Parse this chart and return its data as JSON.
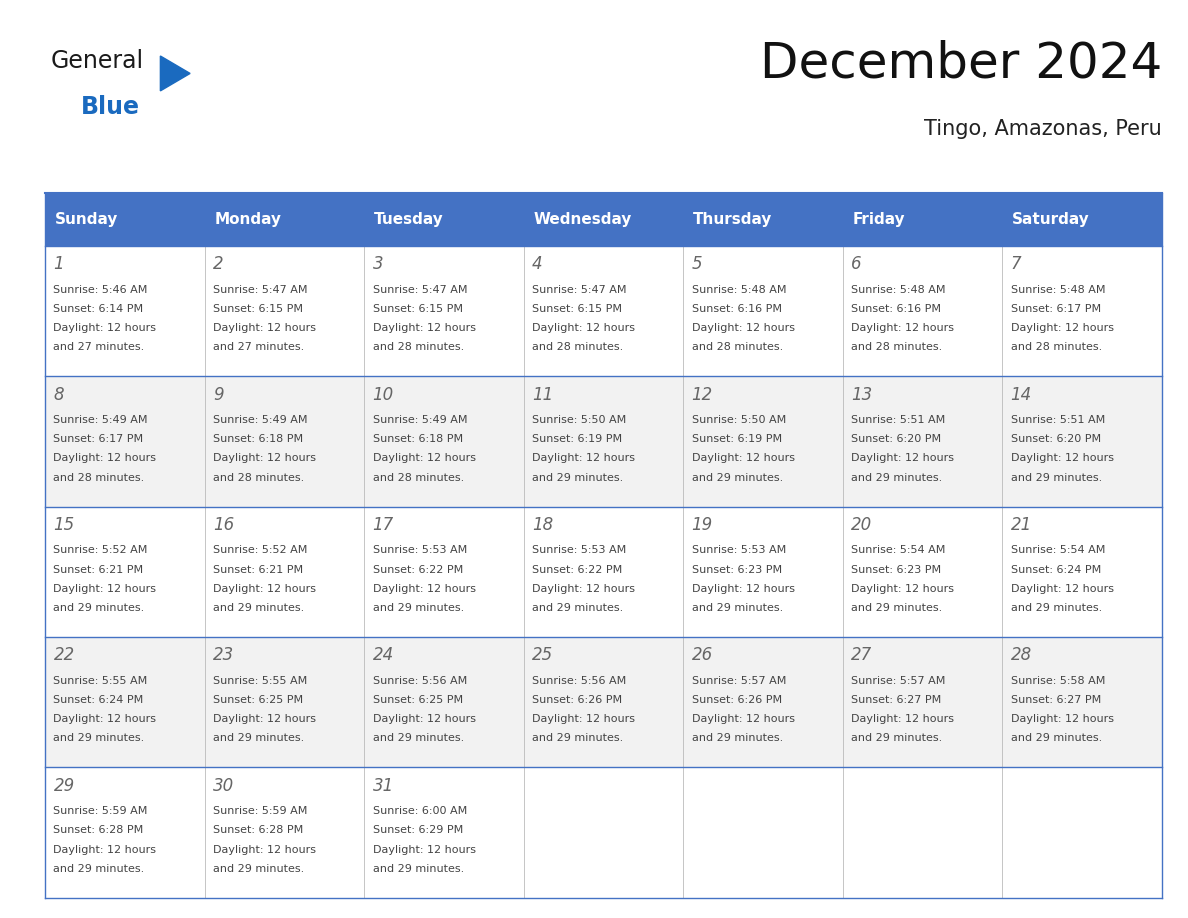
{
  "title": "December 2024",
  "subtitle": "Tingo, Amazonas, Peru",
  "header_bg_color": "#4472C4",
  "header_text_color": "#FFFFFF",
  "header_days": [
    "Sunday",
    "Monday",
    "Tuesday",
    "Wednesday",
    "Thursday",
    "Friday",
    "Saturday"
  ],
  "bg_color": "#FFFFFF",
  "cell_bg_even": "#F2F2F2",
  "cell_bg_odd": "#FFFFFF",
  "grid_color": "#4472C4",
  "day_number_color": "#666666",
  "cell_text_color": "#444444",
  "days": [
    {
      "day": 1,
      "col": 0,
      "row": 0,
      "sunrise": "5:46 AM",
      "sunset": "6:14 PM",
      "daylight": "12 hours and 27 minutes."
    },
    {
      "day": 2,
      "col": 1,
      "row": 0,
      "sunrise": "5:47 AM",
      "sunset": "6:15 PM",
      "daylight": "12 hours and 27 minutes."
    },
    {
      "day": 3,
      "col": 2,
      "row": 0,
      "sunrise": "5:47 AM",
      "sunset": "6:15 PM",
      "daylight": "12 hours and 28 minutes."
    },
    {
      "day": 4,
      "col": 3,
      "row": 0,
      "sunrise": "5:47 AM",
      "sunset": "6:15 PM",
      "daylight": "12 hours and 28 minutes."
    },
    {
      "day": 5,
      "col": 4,
      "row": 0,
      "sunrise": "5:48 AM",
      "sunset": "6:16 PM",
      "daylight": "12 hours and 28 minutes."
    },
    {
      "day": 6,
      "col": 5,
      "row": 0,
      "sunrise": "5:48 AM",
      "sunset": "6:16 PM",
      "daylight": "12 hours and 28 minutes."
    },
    {
      "day": 7,
      "col": 6,
      "row": 0,
      "sunrise": "5:48 AM",
      "sunset": "6:17 PM",
      "daylight": "12 hours and 28 minutes."
    },
    {
      "day": 8,
      "col": 0,
      "row": 1,
      "sunrise": "5:49 AM",
      "sunset": "6:17 PM",
      "daylight": "12 hours and 28 minutes."
    },
    {
      "day": 9,
      "col": 1,
      "row": 1,
      "sunrise": "5:49 AM",
      "sunset": "6:18 PM",
      "daylight": "12 hours and 28 minutes."
    },
    {
      "day": 10,
      "col": 2,
      "row": 1,
      "sunrise": "5:49 AM",
      "sunset": "6:18 PM",
      "daylight": "12 hours and 28 minutes."
    },
    {
      "day": 11,
      "col": 3,
      "row": 1,
      "sunrise": "5:50 AM",
      "sunset": "6:19 PM",
      "daylight": "12 hours and 29 minutes."
    },
    {
      "day": 12,
      "col": 4,
      "row": 1,
      "sunrise": "5:50 AM",
      "sunset": "6:19 PM",
      "daylight": "12 hours and 29 minutes."
    },
    {
      "day": 13,
      "col": 5,
      "row": 1,
      "sunrise": "5:51 AM",
      "sunset": "6:20 PM",
      "daylight": "12 hours and 29 minutes."
    },
    {
      "day": 14,
      "col": 6,
      "row": 1,
      "sunrise": "5:51 AM",
      "sunset": "6:20 PM",
      "daylight": "12 hours and 29 minutes."
    },
    {
      "day": 15,
      "col": 0,
      "row": 2,
      "sunrise": "5:52 AM",
      "sunset": "6:21 PM",
      "daylight": "12 hours and 29 minutes."
    },
    {
      "day": 16,
      "col": 1,
      "row": 2,
      "sunrise": "5:52 AM",
      "sunset": "6:21 PM",
      "daylight": "12 hours and 29 minutes."
    },
    {
      "day": 17,
      "col": 2,
      "row": 2,
      "sunrise": "5:53 AM",
      "sunset": "6:22 PM",
      "daylight": "12 hours and 29 minutes."
    },
    {
      "day": 18,
      "col": 3,
      "row": 2,
      "sunrise": "5:53 AM",
      "sunset": "6:22 PM",
      "daylight": "12 hours and 29 minutes."
    },
    {
      "day": 19,
      "col": 4,
      "row": 2,
      "sunrise": "5:53 AM",
      "sunset": "6:23 PM",
      "daylight": "12 hours and 29 minutes."
    },
    {
      "day": 20,
      "col": 5,
      "row": 2,
      "sunrise": "5:54 AM",
      "sunset": "6:23 PM",
      "daylight": "12 hours and 29 minutes."
    },
    {
      "day": 21,
      "col": 6,
      "row": 2,
      "sunrise": "5:54 AM",
      "sunset": "6:24 PM",
      "daylight": "12 hours and 29 minutes."
    },
    {
      "day": 22,
      "col": 0,
      "row": 3,
      "sunrise": "5:55 AM",
      "sunset": "6:24 PM",
      "daylight": "12 hours and 29 minutes."
    },
    {
      "day": 23,
      "col": 1,
      "row": 3,
      "sunrise": "5:55 AM",
      "sunset": "6:25 PM",
      "daylight": "12 hours and 29 minutes."
    },
    {
      "day": 24,
      "col": 2,
      "row": 3,
      "sunrise": "5:56 AM",
      "sunset": "6:25 PM",
      "daylight": "12 hours and 29 minutes."
    },
    {
      "day": 25,
      "col": 3,
      "row": 3,
      "sunrise": "5:56 AM",
      "sunset": "6:26 PM",
      "daylight": "12 hours and 29 minutes."
    },
    {
      "day": 26,
      "col": 4,
      "row": 3,
      "sunrise": "5:57 AM",
      "sunset": "6:26 PM",
      "daylight": "12 hours and 29 minutes."
    },
    {
      "day": 27,
      "col": 5,
      "row": 3,
      "sunrise": "5:57 AM",
      "sunset": "6:27 PM",
      "daylight": "12 hours and 29 minutes."
    },
    {
      "day": 28,
      "col": 6,
      "row": 3,
      "sunrise": "5:58 AM",
      "sunset": "6:27 PM",
      "daylight": "12 hours and 29 minutes."
    },
    {
      "day": 29,
      "col": 0,
      "row": 4,
      "sunrise": "5:59 AM",
      "sunset": "6:28 PM",
      "daylight": "12 hours and 29 minutes."
    },
    {
      "day": 30,
      "col": 1,
      "row": 4,
      "sunrise": "5:59 AM",
      "sunset": "6:28 PM",
      "daylight": "12 hours and 29 minutes."
    },
    {
      "day": 31,
      "col": 2,
      "row": 4,
      "sunrise": "6:00 AM",
      "sunset": "6:29 PM",
      "daylight": "12 hours and 29 minutes."
    }
  ],
  "logo_color_general": "#1a1a1a",
  "logo_color_blue": "#1a6abf",
  "logo_triangle_color": "#1a6abf"
}
